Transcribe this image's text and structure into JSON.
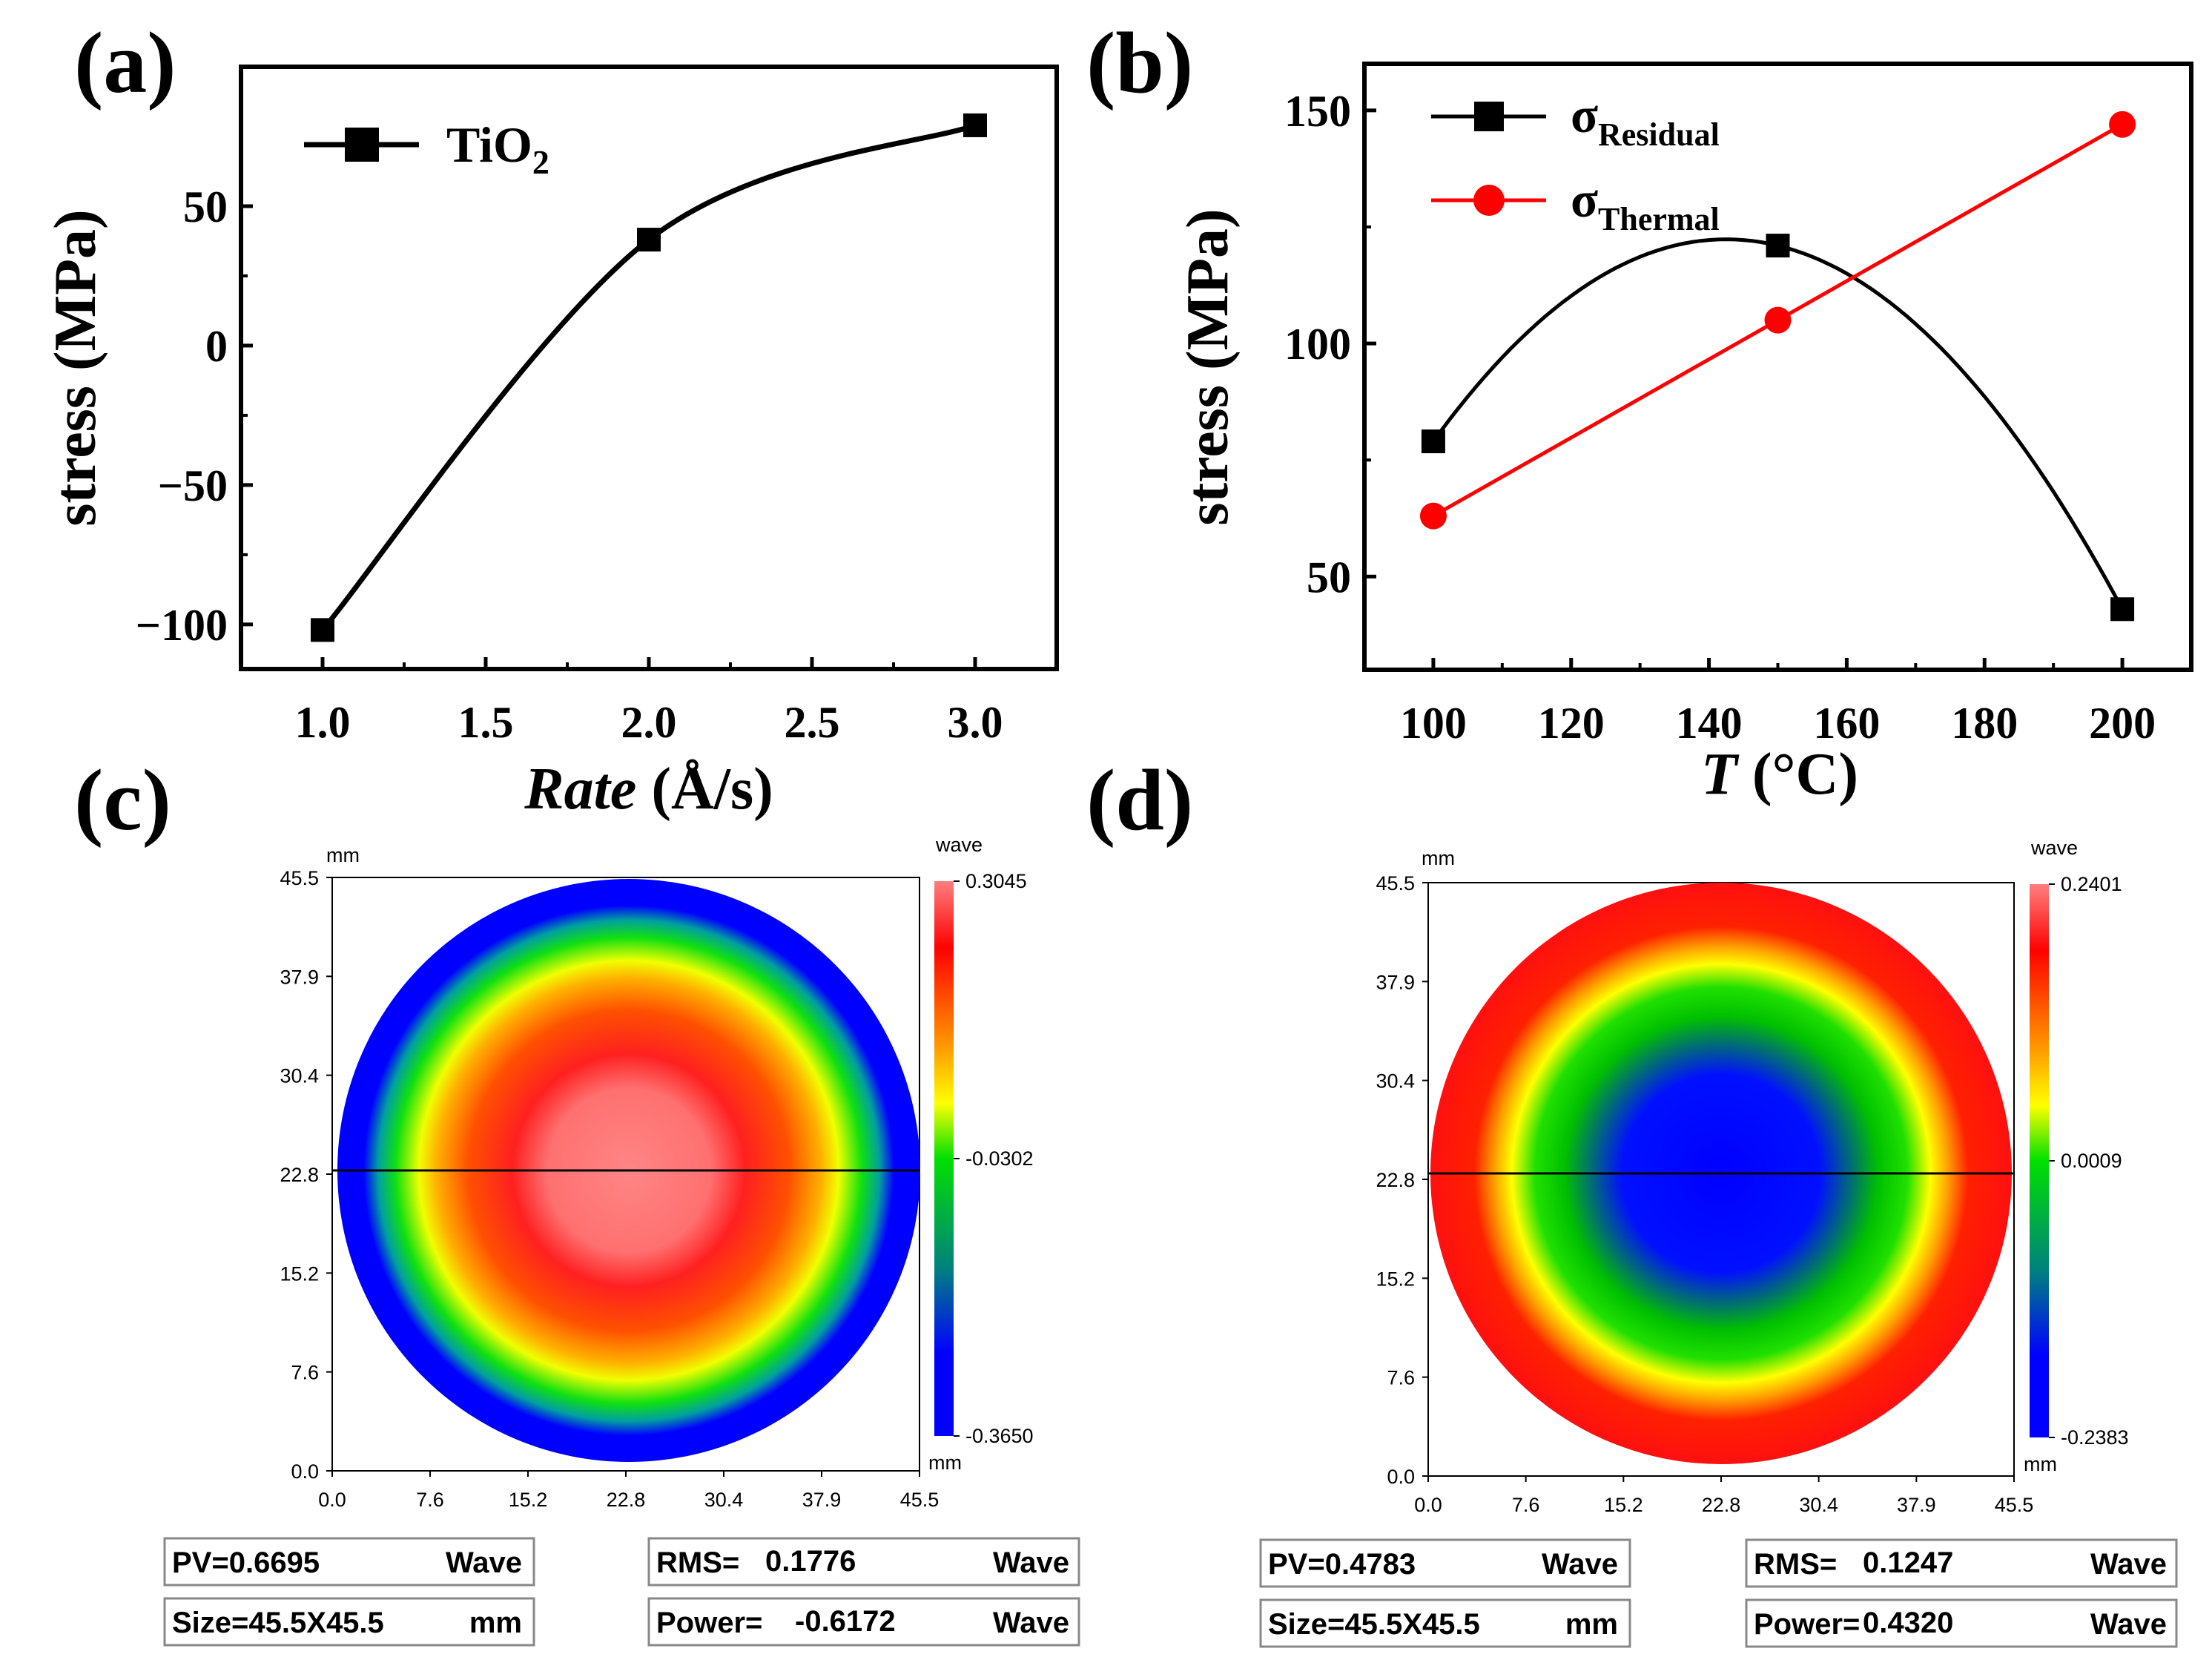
{
  "panels": {
    "a": "(a)",
    "b": "(b)",
    "c": "(c)",
    "d": "(d)"
  },
  "chart_data": [
    {
      "id": "a",
      "type": "line",
      "smooth": true,
      "xlabel_italic": "Rate",
      "xlabel_unit": " (Å/s)",
      "ylabel": "stress (MPa)",
      "xlim": [
        0.75,
        3.25
      ],
      "ylim": [
        -116,
        100
      ],
      "xticks": [
        1.0,
        1.5,
        2.0,
        2.5,
        3.0
      ],
      "xtick_labels": [
        "1.0",
        "1.5",
        "2.0",
        "2.5",
        "3.0"
      ],
      "yticks": [
        -100,
        -50,
        0,
        50
      ],
      "ytick_labels": [
        "−100",
        "−50",
        "0",
        "50"
      ],
      "series": [
        {
          "name": "TiO",
          "sub": "2",
          "color": "#000000",
          "marker": "square",
          "x": [
            1.0,
            2.0,
            3.0
          ],
          "y": [
            -102,
            38,
            79
          ]
        }
      ]
    },
    {
      "id": "b",
      "type": "line",
      "xlabel_italic": "T",
      "xlabel_unit": " (°C)",
      "ylabel": "stress (MPa)",
      "xlim": [
        90,
        210
      ],
      "ylim": [
        30,
        160
      ],
      "xticks": [
        100,
        120,
        140,
        160,
        180,
        200
      ],
      "xtick_labels": [
        "100",
        "120",
        "140",
        "160",
        "180",
        "200"
      ],
      "yticks": [
        50,
        100,
        150
      ],
      "ytick_labels": [
        "50",
        "100",
        "150"
      ],
      "series": [
        {
          "name": "σ",
          "sub": "Residual",
          "color": "#000000",
          "marker": "square",
          "smooth": true,
          "x": [
            100,
            150,
            200
          ],
          "y": [
            79,
            121,
            43
          ]
        },
        {
          "name": "σ",
          "sub": "Thermal",
          "color": "#ff0000",
          "marker": "circle",
          "smooth": false,
          "x": [
            100,
            150,
            200
          ],
          "y": [
            63,
            105,
            147
          ]
        }
      ]
    },
    {
      "id": "c",
      "type": "heatmap",
      "unit_label": "mm",
      "xticks": [
        "0.0",
        "7.6",
        "15.2",
        "22.8",
        "30.4",
        "37.9",
        "45.5"
      ],
      "yticks": [
        "45.5",
        "37.9",
        "30.4",
        "22.8",
        "15.2",
        "7.6",
        "0.0"
      ],
      "colorbar": {
        "title": "wave",
        "max": "0.3045",
        "mid": "-0.0302",
        "min": "-0.3650",
        "unit": "mm"
      },
      "center_high": true,
      "stats": {
        "pv_label": "PV=",
        "pv": "0.6695",
        "pv_unit": "Wave",
        "rms_label": "RMS=",
        "rms": "0.1776",
        "rms_unit": "Wave",
        "size_label": "Size=",
        "size": "45.5X45.5",
        "size_unit": "mm",
        "power_label": "Power=",
        "power": "-0.6172",
        "power_unit": "Wave"
      }
    },
    {
      "id": "d",
      "type": "heatmap",
      "unit_label": "mm",
      "xticks": [
        "0.0",
        "7.6",
        "15.2",
        "22.8",
        "30.4",
        "37.9",
        "45.5"
      ],
      "yticks": [
        "45.5",
        "37.9",
        "30.4",
        "22.8",
        "15.2",
        "7.6",
        "0.0"
      ],
      "colorbar": {
        "title": "wave",
        "max": "0.2401",
        "mid": "0.0009",
        "min": "-0.2383",
        "unit": "mm"
      },
      "center_high": false,
      "stats": {
        "pv_label": "PV=",
        "pv": "0.4783",
        "pv_unit": "Wave",
        "rms_label": "RMS=",
        "rms": "0.1247",
        "rms_unit": "Wave",
        "size_label": "Size=",
        "size": "45.5X45.5",
        "size_unit": "mm",
        "power_label": "Power=",
        "power": "0.4320",
        "power_unit": "Wave"
      }
    }
  ]
}
